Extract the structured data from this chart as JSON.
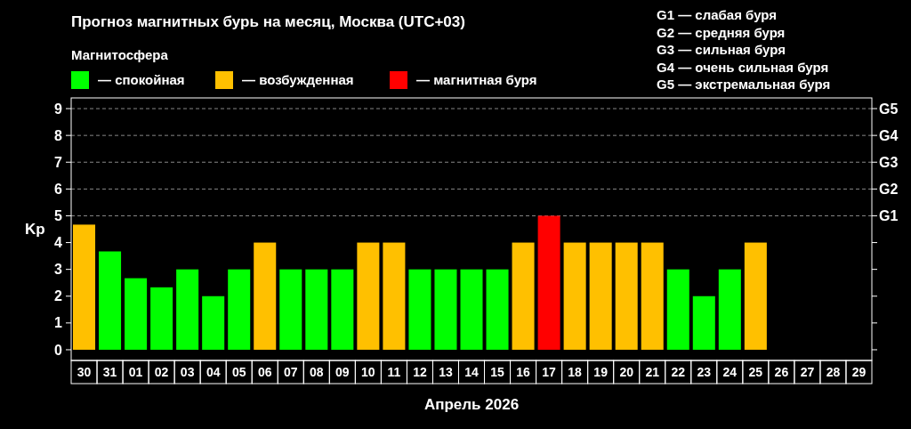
{
  "chart_data": {
    "type": "bar",
    "title": "Прогноз магнитных бурь на месяц, Москва (UTC+03)",
    "legend_title": "Магнитосфера",
    "xlabel": "Апрель 2026",
    "ylabel": "Kp",
    "categories": [
      "30",
      "31",
      "01",
      "02",
      "03",
      "04",
      "05",
      "06",
      "07",
      "08",
      "09",
      "10",
      "11",
      "12",
      "13",
      "14",
      "15",
      "16",
      "17",
      "18",
      "19",
      "20",
      "21",
      "22",
      "23",
      "24",
      "25",
      "26",
      "27",
      "28",
      "29"
    ],
    "series": [
      {
        "name": "— спокойная",
        "color": "#00ff00",
        "values": [
          null,
          3.67,
          2.67,
          2.33,
          3,
          2,
          3,
          null,
          3,
          3,
          3,
          null,
          null,
          3,
          3,
          3,
          3,
          null,
          null,
          null,
          null,
          null,
          null,
          3,
          2,
          3,
          null,
          null,
          null,
          null,
          null
        ]
      },
      {
        "name": "— возбужденная",
        "color": "#ffc000",
        "values": [
          4.67,
          null,
          null,
          null,
          null,
          null,
          null,
          4,
          null,
          null,
          null,
          4,
          4,
          null,
          null,
          null,
          null,
          4,
          null,
          4,
          4,
          4,
          4,
          null,
          null,
          null,
          4,
          null,
          null,
          null,
          null
        ]
      },
      {
        "name": "— магнитная буря",
        "color": "#ff0000",
        "values": [
          null,
          null,
          null,
          null,
          null,
          null,
          null,
          null,
          null,
          null,
          null,
          null,
          null,
          null,
          null,
          null,
          null,
          null,
          5,
          null,
          null,
          null,
          null,
          null,
          null,
          null,
          null,
          null,
          null,
          null,
          null
        ]
      }
    ],
    "ylim": [
      -0.4,
      9.4
    ],
    "yticks": [
      0,
      1,
      2,
      3,
      4,
      5,
      6,
      7,
      8,
      9
    ],
    "ref_lines": [
      {
        "axis": "y",
        "value": 5,
        "label": "G1",
        "color": "#888888",
        "line_style": "dashed"
      },
      {
        "axis": "y",
        "value": 6,
        "label": "G2",
        "color": "#888888",
        "line_style": "dashed"
      },
      {
        "axis": "y",
        "value": 7,
        "label": "G3",
        "color": "#888888",
        "line_style": "dashed"
      },
      {
        "axis": "y",
        "value": 8,
        "label": "G4",
        "color": "#888888",
        "line_style": "dashed"
      },
      {
        "axis": "y",
        "value": 9,
        "label": "G5",
        "color": "#888888",
        "line_style": "dashed"
      }
    ],
    "legend": "top left",
    "annotations": [
      "G1 — слабая буря",
      "G2 — средняя буря",
      "G3 — сильная буря",
      "G4 — очень сильная буря",
      "G5 — экстремальная буря"
    ]
  }
}
